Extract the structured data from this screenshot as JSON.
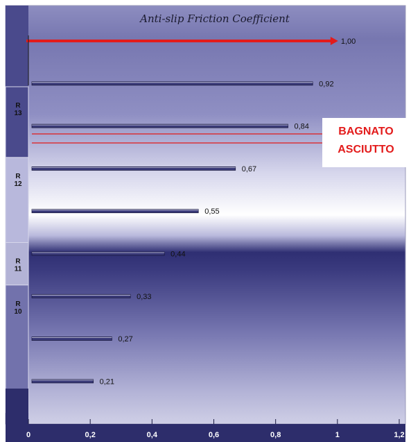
{
  "chart_data": {
    "type": "bar",
    "orientation": "horizontal",
    "title": "Anti-slip Friction Coefficient",
    "values": [
      1.0,
      0.92,
      0.84,
      0.67,
      0.55,
      0.44,
      0.33,
      0.27,
      0.21
    ],
    "value_labels": [
      "1,00",
      "0,92",
      "0,84",
      "0,67",
      "0,55",
      "0,44",
      "0,33",
      "0,27",
      "0,21"
    ],
    "highlight_first": true,
    "xlim": [
      0,
      1.2
    ],
    "x_ticks": [
      0,
      0.2,
      0.4,
      0.6,
      0.8,
      1.0,
      1.2
    ],
    "x_tick_labels": [
      "0",
      "0,2",
      "0,4",
      "0,6",
      "0,8",
      "1",
      "1,2"
    ],
    "bands": [
      {
        "label_lines": [
          "R",
          "13"
        ],
        "from_index": 1,
        "to_index": 3
      },
      {
        "label_lines": [
          "R",
          "12"
        ],
        "from_index": 3,
        "to_index": 5
      },
      {
        "label_lines": [
          "R",
          "11"
        ],
        "from_index": 5,
        "to_index": 6
      },
      {
        "label_lines": [
          "R",
          "10"
        ],
        "from_index": 6,
        "to_index": 9
      }
    ],
    "legend": [
      {
        "label": "BAGNATO",
        "color": "#e31b1b"
      },
      {
        "label": "ASCIUTTO",
        "color": "#e31b1b"
      }
    ],
    "colors": {
      "bar_fill": "#3a3a78",
      "bar_edge": "#ffffff",
      "highlight": "#e31b1b",
      "band_column": "#4a4a8c",
      "axis_bar": "#2d2d6b",
      "bg_light": "#ffffff",
      "bg_dark": "#2f2f73"
    }
  }
}
